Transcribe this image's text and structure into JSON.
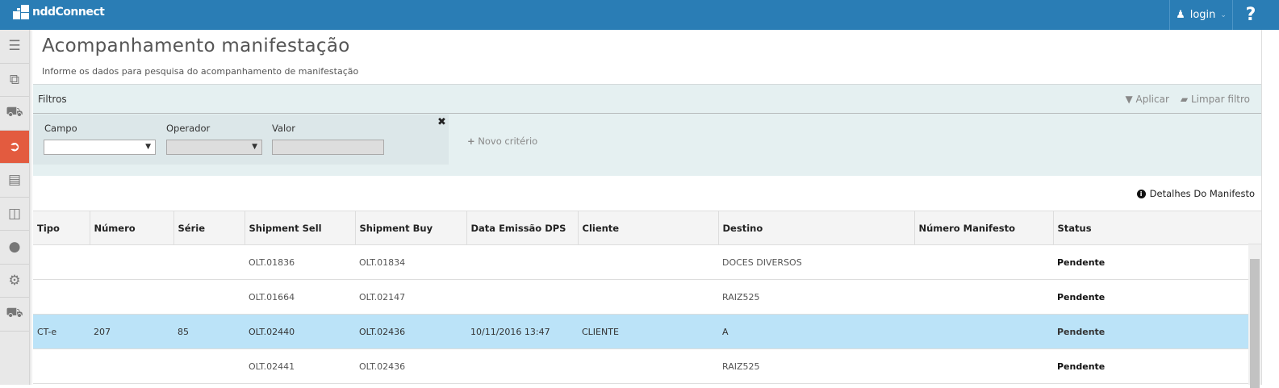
{
  "app": {
    "name": "nddConnect",
    "login": "login",
    "help": "?"
  },
  "page": {
    "title": "Acompanhamento manifestação",
    "subtitle": "Informe os dados para pesquisa do acompanhamento de manifestação"
  },
  "sidebar": {
    "items": [
      {
        "icon": "menu-icon",
        "active": false
      },
      {
        "icon": "documents-icon",
        "active": false
      },
      {
        "icon": "truck-icon",
        "active": false
      },
      {
        "icon": "export-icon",
        "active": true
      },
      {
        "icon": "file-text-icon",
        "active": false
      },
      {
        "icon": "money-icon",
        "active": false
      },
      {
        "icon": "users-icon",
        "active": false
      },
      {
        "icon": "gears-icon",
        "active": false
      },
      {
        "icon": "truck-icon",
        "active": false
      }
    ]
  },
  "filters": {
    "title": "Filtros",
    "apply": "Aplicar",
    "clear": "Limpar filtro",
    "campo_label": "Campo",
    "operador_label": "Operador",
    "valor_label": "Valor",
    "campo_value": "",
    "operador_value": "",
    "valor_value": "",
    "novo": "Novo critério"
  },
  "details_link": "Detalhes Do Manifesto",
  "table": {
    "columns": [
      "Tipo",
      "Número",
      "Série",
      "Shipment Sell",
      "Shipment Buy",
      "Data Emissão DPS",
      "Cliente",
      "Destino",
      "Número Manifesto",
      "Status"
    ],
    "rows": [
      [
        "",
        "",
        "",
        "OLT.01836",
        "OLT.01834",
        "",
        "",
        "DOCES DIVERSOS",
        "",
        "Pendente"
      ],
      [
        "",
        "",
        "",
        "OLT.01664",
        "OLT.02147",
        "",
        "",
        "RAIZ525",
        "",
        "Pendente"
      ],
      [
        "CT-e",
        "207",
        "85",
        "OLT.02440",
        "OLT.02436",
        "10/11/2016 13:47",
        "CLIENTE",
        "A",
        "",
        "Pendente"
      ],
      [
        "",
        "",
        "",
        "OLT.02441",
        "OLT.02436",
        "",
        "",
        "RAIZ525",
        "",
        "Pendente"
      ]
    ],
    "selected_row": 2
  },
  "colors": {
    "header": "#2a7db5",
    "active": "#e35b3f",
    "selected": "#bbe3f8"
  }
}
